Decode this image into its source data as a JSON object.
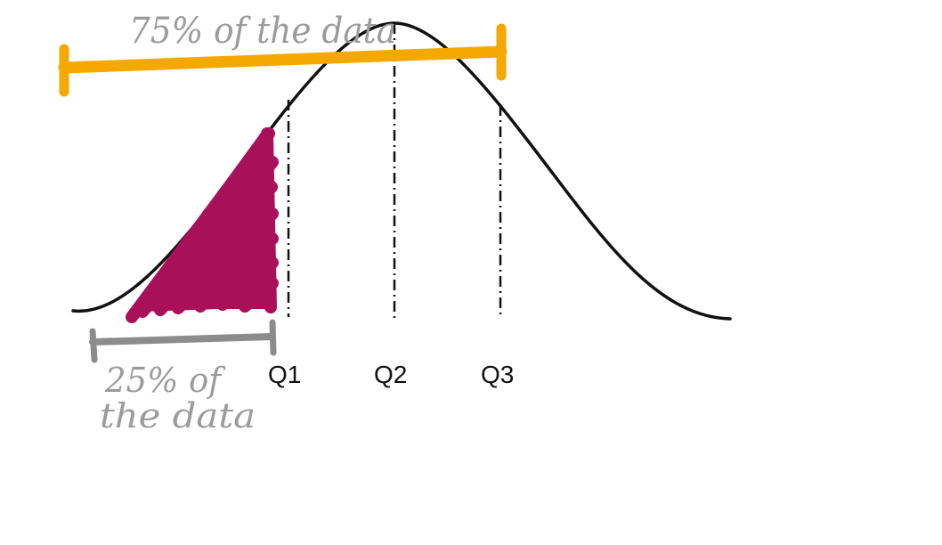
{
  "figure": {
    "quartile_labels": [
      "Q1",
      "Q2",
      "Q3"
    ],
    "annotation_top": "75% of the data",
    "annotation_bottom_line1": "25% of",
    "annotation_bottom_line2": "the data"
  },
  "colors": {
    "curve": "#111111",
    "top_bar": "#f5a800",
    "bottom_bar": "#8c8c8c",
    "shading": "#a8105a",
    "handwriting": "#9b9b9b"
  }
}
